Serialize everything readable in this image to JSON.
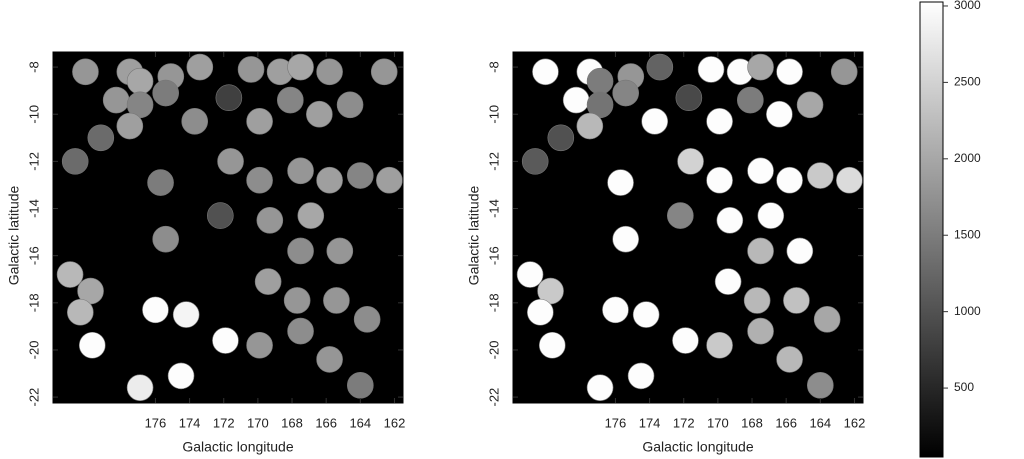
{
  "chart_data": [
    {
      "type": "scatter",
      "xlabel": "Galactic longitude",
      "ylabel": "Galactic latitude",
      "xlim": [
        182,
        161.5
      ],
      "ylim": [
        -22.25,
        -7.36
      ],
      "xticks": [
        176,
        174,
        172,
        170,
        168,
        166,
        164,
        162
      ],
      "yticks": [
        -8,
        -10,
        -12,
        -14,
        -16,
        -18,
        -20,
        -22
      ],
      "x": [
        180.1,
        177.5,
        176.9,
        175.1,
        173.4,
        170.4,
        168.7,
        167.5,
        165.8,
        162.6,
        178.3,
        176.9,
        175.4,
        173.7,
        171.7,
        169.9,
        168.1,
        166.4,
        164.6,
        179.2,
        177.5,
        180.7,
        175.7,
        171.6,
        169.9,
        167.5,
        165.8,
        164.0,
        162.3,
        172.2,
        169.3,
        166.9,
        175.4,
        167.5,
        165.2,
        181.0,
        179.8,
        180.4,
        176.0,
        174.2,
        171.9,
        179.7,
        169.4,
        167.7,
        165.4,
        163.6,
        169.9,
        167.5,
        165.8,
        174.5,
        176.9,
        164.0
      ],
      "y": [
        -8.2,
        -8.2,
        -8.6,
        -8.4,
        -8.0,
        -8.1,
        -8.2,
        -8.0,
        -8.2,
        -8.2,
        -9.4,
        -9.6,
        -9.1,
        -10.3,
        -9.3,
        -10.3,
        -9.4,
        -10.0,
        -9.6,
        -11.0,
        -10.5,
        -12.0,
        -12.9,
        -12.0,
        -12.8,
        -12.4,
        -12.8,
        -12.6,
        -12.8,
        -14.3,
        -14.5,
        -14.3,
        -15.3,
        -15.8,
        -15.8,
        -16.8,
        -17.5,
        -18.4,
        -18.3,
        -18.5,
        -19.6,
        -19.8,
        -17.1,
        -17.9,
        -17.9,
        -18.7,
        -19.8,
        -19.2,
        -20.4,
        -21.1,
        -21.6,
        -21.5
      ],
      "values": [
        1800,
        1900,
        2000,
        1800,
        1900,
        1800,
        1900,
        2000,
        1800,
        1800,
        1800,
        1600,
        1500,
        1700,
        800,
        1900,
        1600,
        1900,
        1700,
        1300,
        1900,
        1300,
        1500,
        1800,
        1700,
        1800,
        1900,
        1600,
        1900,
        1000,
        1800,
        2000,
        1700,
        1700,
        1800,
        2200,
        2000,
        2200,
        3000,
        2900,
        3000,
        3000,
        1900,
        1800,
        1800,
        1700,
        1800,
        1700,
        1800,
        3000,
        2800,
        1500
      ],
      "zlim": [
        49,
        3026
      ]
    },
    {
      "type": "scatter",
      "xlabel": "Galactic longitude",
      "ylabel": "Galactic latitude",
      "xlim": [
        182,
        161.5
      ],
      "ylim": [
        -22.25,
        -7.36
      ],
      "xticks": [
        176,
        174,
        172,
        170,
        168,
        166,
        164,
        162
      ],
      "yticks": [
        -8,
        -10,
        -12,
        -14,
        -16,
        -18,
        -20,
        -22
      ],
      "x": [
        180.1,
        177.5,
        176.9,
        175.1,
        173.4,
        170.4,
        168.7,
        167.5,
        165.8,
        162.6,
        178.3,
        176.9,
        175.4,
        173.7,
        171.7,
        169.9,
        168.1,
        166.4,
        164.6,
        179.2,
        177.5,
        180.7,
        175.7,
        171.6,
        169.9,
        167.5,
        165.8,
        164.0,
        162.3,
        172.2,
        169.3,
        166.9,
        175.4,
        167.5,
        165.2,
        181.0,
        179.8,
        180.4,
        176.0,
        174.2,
        171.9,
        179.7,
        169.4,
        167.7,
        165.4,
        163.6,
        169.9,
        167.5,
        165.8,
        174.5,
        176.9,
        164.0
      ],
      "y": [
        -8.2,
        -8.2,
        -8.6,
        -8.4,
        -8.0,
        -8.1,
        -8.2,
        -8.0,
        -8.2,
        -8.2,
        -9.4,
        -9.6,
        -9.1,
        -10.3,
        -9.3,
        -10.3,
        -9.4,
        -10.0,
        -9.6,
        -11.0,
        -10.5,
        -12.0,
        -12.9,
        -12.0,
        -12.8,
        -12.4,
        -12.8,
        -12.6,
        -12.8,
        -14.3,
        -14.5,
        -14.3,
        -15.3,
        -15.8,
        -15.8,
        -16.8,
        -17.5,
        -18.4,
        -18.3,
        -18.5,
        -19.6,
        -19.8,
        -17.1,
        -17.9,
        -17.9,
        -18.7,
        -19.8,
        -19.2,
        -20.4,
        -21.1,
        -21.6,
        -21.5
      ],
      "values": [
        3000,
        3000,
        1500,
        1800,
        1200,
        3000,
        3000,
        2000,
        3000,
        1800,
        3000,
        1400,
        1600,
        3000,
        900,
        3000,
        1500,
        3000,
        2000,
        1000,
        2200,
        1100,
        3000,
        2500,
        3000,
        3000,
        3000,
        2400,
        2600,
        1600,
        3000,
        3000,
        3000,
        2200,
        3000,
        3000,
        2400,
        3000,
        3000,
        3000,
        3000,
        3000,
        3000,
        2200,
        2300,
        2000,
        2400,
        2100,
        2200,
        3000,
        3000,
        1700
      ],
      "zlim": [
        49,
        3026
      ]
    },
    {
      "type": "colorbar",
      "zlim": [
        49,
        3026
      ],
      "zticks": [
        500,
        1000,
        1500,
        2000,
        2500,
        3000
      ]
    }
  ]
}
